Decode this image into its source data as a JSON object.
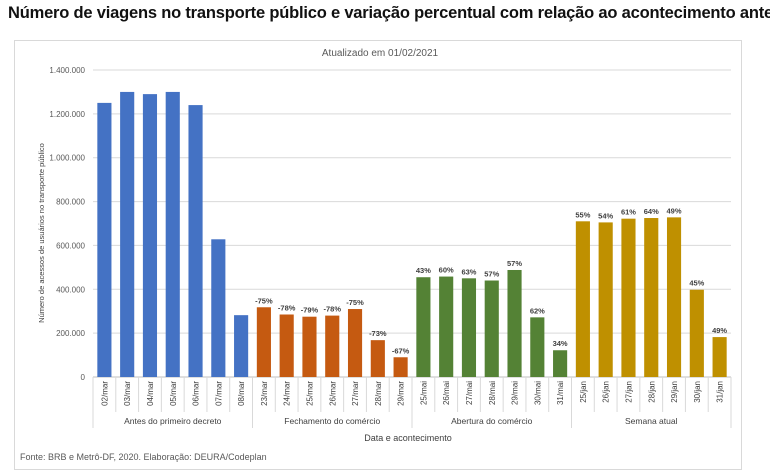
{
  "header": {
    "title": "Número de viagens no transporte público e variação percentual com relação ao acontecimento anterior",
    "source": "Fonte: BRB e Metrô-DF, 2020. Elaboração: DEURA/Codeplan"
  },
  "colors": {
    "blue": "#4472c4",
    "orange": "#c55a11",
    "green": "#548235",
    "gold": "#bf9000"
  },
  "chart_data": {
    "type": "bar",
    "title": "Atualizado em 01/02/2021",
    "xlabel": "Data e acontecimento",
    "ylabel": "Número de acessos de usuários no transporte público",
    "ylim": [
      0,
      1400000
    ],
    "yticks": [
      {
        "value": 0,
        "label": "0"
      },
      {
        "value": 200000,
        "label": "200.000"
      },
      {
        "value": 400000,
        "label": "400.000"
      },
      {
        "value": 600000,
        "label": "600.000"
      },
      {
        "value": 800000,
        "label": "800.000"
      },
      {
        "value": 1000000,
        "label": "1.000.000"
      },
      {
        "value": 1200000,
        "label": "1.200.000"
      },
      {
        "value": 1400000,
        "label": "1.400.000"
      }
    ],
    "grid": true,
    "groups": [
      {
        "name": "Antes do primeiro decreto",
        "color": "blue",
        "categories": [
          "02/mar",
          "03/mar",
          "04/mar",
          "05/mar",
          "06/mar",
          "07/mar",
          "08/mar"
        ],
        "values": [
          1250000,
          1300000,
          1290000,
          1300000,
          1240000,
          628000,
          282000
        ],
        "labels": [
          "",
          "",
          "",
          "",
          "",
          "",
          ""
        ]
      },
      {
        "name": "Fechamento do comércio",
        "color": "orange",
        "categories": [
          "23/mar",
          "24/mar",
          "25/mar",
          "26/mar",
          "27/mar",
          "28/mar",
          "29/mar"
        ],
        "values": [
          318000,
          285000,
          275000,
          280000,
          310000,
          168000,
          90000
        ],
        "labels": [
          "-75%",
          "-78%",
          "-79%",
          "-78%",
          "-75%",
          "-73%",
          "-67%"
        ]
      },
      {
        "name": "Abertura do comércio",
        "color": "green",
        "categories": [
          "25/mai",
          "26/mai",
          "27/mai",
          "28/mai",
          "29/mai",
          "30/mai",
          "31/mai"
        ],
        "values": [
          455000,
          458000,
          450000,
          440000,
          488000,
          272000,
          122000
        ],
        "labels": [
          "43%",
          "60%",
          "63%",
          "57%",
          "57%",
          "62%",
          "34%"
        ]
      },
      {
        "name": "Semana atual",
        "color": "gold",
        "categories": [
          "25/jan",
          "26/jan",
          "27/jan",
          "28/jan",
          "29/jan",
          "30/jan",
          "31/jan"
        ],
        "values": [
          710000,
          705000,
          722000,
          725000,
          728000,
          398000,
          182000
        ],
        "labels": [
          "55%",
          "54%",
          "61%",
          "64%",
          "49%",
          "45%",
          "49%"
        ]
      }
    ]
  }
}
